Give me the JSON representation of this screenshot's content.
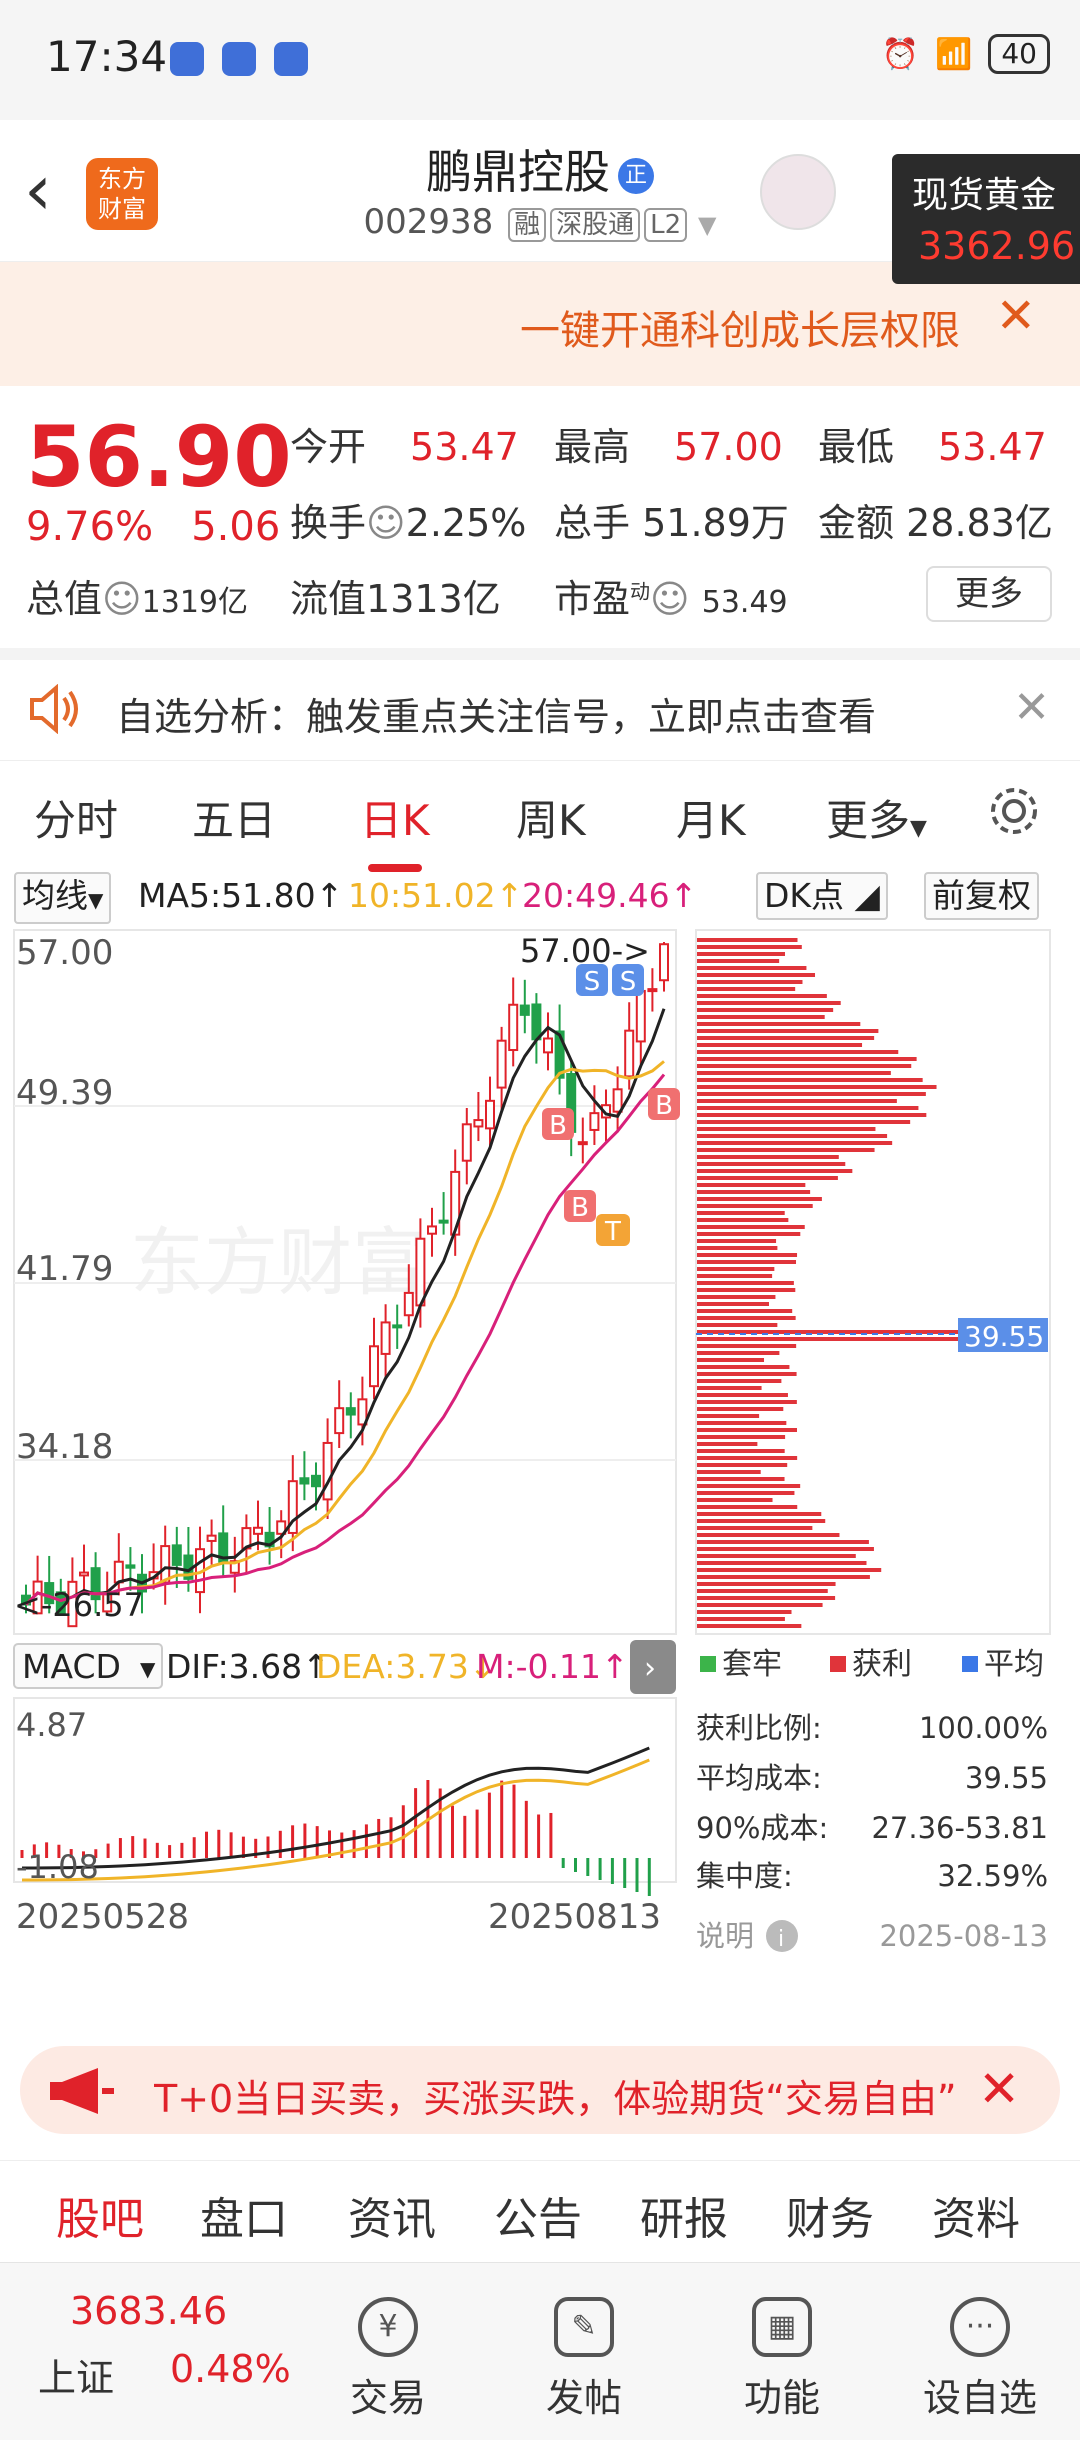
{
  "status": {
    "time": "17:34",
    "battery": "40"
  },
  "header": {
    "back": "‹",
    "logo": "东方\n财富",
    "name": "鹏鼎控股",
    "badge": "正",
    "code": "002938",
    "tags": [
      "融",
      "深股通",
      "L2"
    ]
  },
  "gold": {
    "title": "现货黄金",
    "value": "3362.96"
  },
  "banner": {
    "text": "一键开通科创成长层权限",
    "close": "✕"
  },
  "quote": {
    "price": "56.90",
    "change_pct": "9.76%",
    "change": "5.06",
    "open_label": "今开",
    "open": "53.47",
    "high_label": "最高",
    "high": "57.00",
    "low_label": "最低",
    "low": "53.47",
    "turnover_label": "换手",
    "turnover": "2.25%",
    "volume_label": "总手",
    "volume": "51.89万",
    "amount_label": "金额",
    "amount": "28.83亿",
    "mktcap_label": "总值",
    "mktcap": "1319亿",
    "float_label": "流值",
    "float": "1313亿",
    "pe_label": "市盈",
    "pe_sup": "动",
    "pe": "53.49",
    "more": "更多"
  },
  "signal": {
    "text": "自选分析：触发重点关注信号，立即点击查看",
    "close": "✕"
  },
  "tabs": [
    "分时",
    "五日",
    "日K",
    "周K",
    "月K",
    "更多"
  ],
  "active_tab": "日K",
  "ma": {
    "select": "均线",
    "ma5": "MA5:51.80↑",
    "ma10": "10:51.02↑",
    "ma20": "20:49.46↑",
    "dk": "DK点",
    "adjust": "前复权",
    "ma5_color": "#222222",
    "ma10_color": "#f0b428",
    "ma20_color": "#d8207a"
  },
  "kline": {
    "y_labels": [
      "57.00",
      "49.39",
      "41.79",
      "34.18"
    ],
    "high_annotation": "57.00->",
    "low_annotation": "<-26.57",
    "low_label": "26.57",
    "markers": [
      "S",
      "S",
      "B",
      "B",
      "B",
      "T"
    ],
    "watermark": "东方财富"
  },
  "chip": {
    "price_tag": "39.55",
    "legend": [
      "套牢",
      "获利",
      "平均"
    ],
    "legend_colors": [
      "#3cb44a",
      "#e0343a",
      "#3b78e7"
    ],
    "rows": [
      {
        "label": "获利比例:",
        "value": "100.00%"
      },
      {
        "label": "平均成本:",
        "value": "39.55"
      },
      {
        "label": "90%成本:",
        "value": "27.36-53.81"
      },
      {
        "label": "集中度:",
        "value": "32.59%"
      }
    ],
    "note_label": "说明",
    "date": "2025-08-13"
  },
  "macd": {
    "select": "MACD",
    "dif": "DIF:3.68↑",
    "dea": "DEA:3.73↓",
    "m": "M:-0.11↑",
    "top": "4.87",
    "bottom": "-1.08",
    "date_start": "20250528",
    "date_end": "20250813"
  },
  "promo": {
    "text": "T+0当日买卖，买涨买跌，体验期货“交易自由”",
    "close": "✕"
  },
  "bottom_tabs": [
    "股吧",
    "盘口",
    "资讯",
    "公告",
    "研报",
    "财务",
    "资料"
  ],
  "nav": {
    "index_value": "3683.46",
    "index_name": "上证",
    "index_pct": "0.48%",
    "items": [
      {
        "label": "交易",
        "icon": "¥"
      },
      {
        "label": "发帖",
        "icon": "✎"
      },
      {
        "label": "功能",
        "icon": "▦"
      },
      {
        "label": "设自选",
        "icon": "···"
      }
    ]
  }
}
